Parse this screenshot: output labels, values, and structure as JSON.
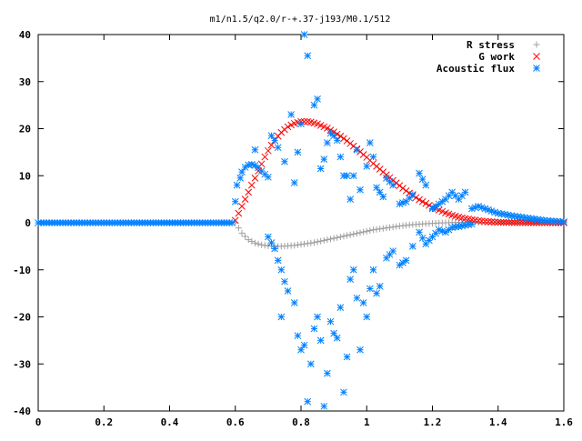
{
  "chart_data": {
    "type": "scatter",
    "title": "m1/n1.5/q2.0/r-+.37-j193/M0.1/512",
    "xlabel": "",
    "ylabel": "",
    "xlim": [
      0,
      1.6
    ],
    "ylim": [
      -40,
      40
    ],
    "x_ticks": [
      "0",
      "0.2",
      "0.4",
      "0.6",
      "0.8",
      "1",
      "1.2",
      "1.4",
      "1.6"
    ],
    "y_ticks": [
      "40",
      "30",
      "20",
      "10",
      "0",
      "-10",
      "-20",
      "-30",
      "-40"
    ],
    "grid": false,
    "legend_position": "top-right",
    "colors": {
      "r_stress": "#a0a0a0",
      "g_work": "#ff0000",
      "acoustic_flux": "#0080ff"
    },
    "series": [
      {
        "name": "R stress",
        "marker": "plus",
        "points": [
          [
            0.6,
            0
          ],
          [
            0.62,
            -2.2
          ],
          [
            0.64,
            -3.6
          ],
          [
            0.66,
            -4.3
          ],
          [
            0.68,
            -4.7
          ],
          [
            0.7,
            -4.9
          ],
          [
            0.72,
            -5.0
          ],
          [
            0.74,
            -5.0
          ],
          [
            0.76,
            -4.9
          ],
          [
            0.78,
            -4.8
          ],
          [
            0.8,
            -4.6
          ],
          [
            0.82,
            -4.4
          ],
          [
            0.84,
            -4.2
          ],
          [
            0.86,
            -3.9
          ],
          [
            0.88,
            -3.6
          ],
          [
            0.9,
            -3.3
          ],
          [
            0.92,
            -3.0
          ],
          [
            0.94,
            -2.7
          ],
          [
            0.96,
            -2.4
          ],
          [
            0.98,
            -2.1
          ],
          [
            1.0,
            -1.8
          ],
          [
            1.02,
            -1.5
          ],
          [
            1.04,
            -1.3
          ],
          [
            1.06,
            -1.1
          ],
          [
            1.08,
            -0.9
          ],
          [
            1.1,
            -0.7
          ],
          [
            1.12,
            -0.55
          ],
          [
            1.14,
            -0.4
          ],
          [
            1.16,
            -0.3
          ],
          [
            1.18,
            -0.2
          ],
          [
            1.2,
            -0.12
          ],
          [
            1.22,
            -0.05
          ],
          [
            1.24,
            0
          ],
          [
            1.26,
            0.05
          ],
          [
            1.28,
            0.08
          ],
          [
            1.3,
            0.1
          ],
          [
            1.32,
            0.1
          ],
          [
            1.34,
            0.1
          ],
          [
            1.36,
            0.08
          ],
          [
            1.38,
            0.06
          ],
          [
            1.4,
            0.05
          ],
          [
            1.45,
            0.03
          ],
          [
            1.5,
            0.02
          ],
          [
            1.55,
            0.01
          ],
          [
            1.6,
            0
          ]
        ]
      },
      {
        "name": "G work",
        "marker": "cross",
        "points": [
          [
            0.6,
            0.5
          ],
          [
            0.61,
            2.0
          ],
          [
            0.62,
            3.5
          ],
          [
            0.63,
            5.0
          ],
          [
            0.64,
            6.5
          ],
          [
            0.65,
            8.0
          ],
          [
            0.66,
            9.5
          ],
          [
            0.67,
            11.0
          ],
          [
            0.68,
            12.5
          ],
          [
            0.69,
            14.0
          ],
          [
            0.7,
            15.3
          ],
          [
            0.71,
            16.5
          ],
          [
            0.72,
            17.5
          ],
          [
            0.73,
            18.4
          ],
          [
            0.74,
            19.2
          ],
          [
            0.75,
            19.8
          ],
          [
            0.76,
            20.4
          ],
          [
            0.77,
            20.8
          ],
          [
            0.78,
            21.1
          ],
          [
            0.79,
            21.3
          ],
          [
            0.8,
            21.5
          ],
          [
            0.81,
            21.5
          ],
          [
            0.82,
            21.5
          ],
          [
            0.83,
            21.4
          ],
          [
            0.84,
            21.2
          ],
          [
            0.85,
            21.0
          ],
          [
            0.86,
            20.7
          ],
          [
            0.88,
            20.1
          ],
          [
            0.9,
            19.3
          ],
          [
            0.92,
            18.4
          ],
          [
            0.94,
            17.4
          ],
          [
            0.96,
            16.3
          ],
          [
            0.98,
            15.1
          ],
          [
            1.0,
            13.9
          ],
          [
            1.02,
            12.6
          ],
          [
            1.04,
            11.4
          ],
          [
            1.06,
            10.2
          ],
          [
            1.08,
            9.0
          ],
          [
            1.1,
            7.9
          ],
          [
            1.12,
            6.8
          ],
          [
            1.14,
            5.8
          ],
          [
            1.16,
            4.9
          ],
          [
            1.18,
            4.1
          ],
          [
            1.2,
            3.3
          ],
          [
            1.22,
            2.7
          ],
          [
            1.24,
            2.1
          ],
          [
            1.26,
            1.6
          ],
          [
            1.28,
            1.2
          ],
          [
            1.3,
            0.9
          ],
          [
            1.32,
            0.65
          ],
          [
            1.34,
            0.45
          ],
          [
            1.36,
            0.3
          ],
          [
            1.38,
            0.2
          ],
          [
            1.4,
            0.12
          ],
          [
            1.45,
            0.05
          ],
          [
            1.5,
            0.02
          ],
          [
            1.55,
            0.01
          ],
          [
            1.6,
            0
          ]
        ]
      },
      {
        "name": "Acoustic flux",
        "marker": "asterisk",
        "points": [
          [
            0.0,
            0
          ],
          [
            0.05,
            0
          ],
          [
            0.1,
            0
          ],
          [
            0.15,
            0
          ],
          [
            0.2,
            0
          ],
          [
            0.25,
            0
          ],
          [
            0.3,
            0
          ],
          [
            0.35,
            0
          ],
          [
            0.4,
            0
          ],
          [
            0.45,
            0
          ],
          [
            0.5,
            0
          ],
          [
            0.55,
            0
          ],
          [
            0.59,
            0
          ],
          [
            0.6,
            4.5
          ],
          [
            0.605,
            8.0
          ],
          [
            0.615,
            9.5
          ],
          [
            0.62,
            10.8
          ],
          [
            0.63,
            11.8
          ],
          [
            0.64,
            12.3
          ],
          [
            0.65,
            12.4
          ],
          [
            0.66,
            12.2
          ],
          [
            0.67,
            11.7
          ],
          [
            0.68,
            11.0
          ],
          [
            0.69,
            10.3
          ],
          [
            0.7,
            9.7
          ],
          [
            0.66,
            15.5
          ],
          [
            0.71,
            18.5
          ],
          [
            0.72,
            17.5
          ],
          [
            0.73,
            16.0
          ],
          [
            0.75,
            13.0
          ],
          [
            0.77,
            23.0
          ],
          [
            0.78,
            8.5
          ],
          [
            0.79,
            15.0
          ],
          [
            0.8,
            21.0
          ],
          [
            0.81,
            40.0
          ],
          [
            0.82,
            35.5
          ],
          [
            0.84,
            25.0
          ],
          [
            0.85,
            26.3
          ],
          [
            0.86,
            11.5
          ],
          [
            0.87,
            13.5
          ],
          [
            0.88,
            17.0
          ],
          [
            0.89,
            19.0
          ],
          [
            0.9,
            18.5
          ],
          [
            0.91,
            17.5
          ],
          [
            0.92,
            14.0
          ],
          [
            0.93,
            10.0
          ],
          [
            0.94,
            10.0
          ],
          [
            0.95,
            5.0
          ],
          [
            0.96,
            10.0
          ],
          [
            0.97,
            15.5
          ],
          [
            0.98,
            7.0
          ],
          [
            1.0,
            12.0
          ],
          [
            1.01,
            17.0
          ],
          [
            1.02,
            14.0
          ],
          [
            1.03,
            7.5
          ],
          [
            1.05,
            5.5
          ],
          [
            1.06,
            9.5
          ],
          [
            1.08,
            8.0
          ],
          [
            1.1,
            4.0
          ],
          [
            1.12,
            4.5
          ],
          [
            1.14,
            6.0
          ],
          [
            1.16,
            10.5
          ],
          [
            1.18,
            8.0
          ],
          [
            1.2,
            3.0
          ],
          [
            1.22,
            4.0
          ],
          [
            1.24,
            5.0
          ],
          [
            1.26,
            6.5
          ],
          [
            1.28,
            5.0
          ],
          [
            1.3,
            6.5
          ],
          [
            1.32,
            3.0
          ],
          [
            1.34,
            3.5
          ],
          [
            1.36,
            3.0
          ],
          [
            1.38,
            2.5
          ],
          [
            1.4,
            2.0
          ],
          [
            1.42,
            1.8
          ],
          [
            1.44,
            1.5
          ],
          [
            1.46,
            1.3
          ],
          [
            1.48,
            1.1
          ],
          [
            1.5,
            0.9
          ],
          [
            1.52,
            0.7
          ],
          [
            1.54,
            0.5
          ],
          [
            1.56,
            0.4
          ],
          [
            1.58,
            0.3
          ],
          [
            1.6,
            0.2
          ],
          [
            0.7,
            -3.0
          ],
          [
            0.72,
            -5.5
          ],
          [
            0.73,
            -8.0
          ],
          [
            0.74,
            -10.0
          ],
          [
            0.75,
            -12.5
          ],
          [
            0.76,
            -14.5
          ],
          [
            0.74,
            -20.0
          ],
          [
            0.78,
            -17.0
          ],
          [
            0.79,
            -24.0
          ],
          [
            0.8,
            -27.0
          ],
          [
            0.81,
            -26.0
          ],
          [
            0.82,
            -38.0
          ],
          [
            0.83,
            -30.0
          ],
          [
            0.84,
            -22.5
          ],
          [
            0.85,
            -20.0
          ],
          [
            0.86,
            -25.0
          ],
          [
            0.87,
            -39.0
          ],
          [
            0.88,
            -32.0
          ],
          [
            0.89,
            -21.0
          ],
          [
            0.9,
            -23.5
          ],
          [
            0.91,
            -24.5
          ],
          [
            0.92,
            -18.0
          ],
          [
            0.93,
            -36.0
          ],
          [
            0.94,
            -28.5
          ],
          [
            0.95,
            -12.0
          ],
          [
            0.96,
            -10.0
          ],
          [
            0.97,
            -16.0
          ],
          [
            0.98,
            -27.0
          ],
          [
            0.99,
            -17.0
          ],
          [
            1.0,
            -20.0
          ],
          [
            1.01,
            -14.0
          ],
          [
            1.02,
            -10.0
          ],
          [
            1.03,
            -15.0
          ],
          [
            1.04,
            -13.5
          ],
          [
            1.06,
            -7.5
          ],
          [
            1.08,
            -6.0
          ],
          [
            1.1,
            -9.0
          ],
          [
            1.12,
            -8.0
          ],
          [
            1.14,
            -5.0
          ],
          [
            1.16,
            -2.0
          ],
          [
            1.18,
            -4.5
          ],
          [
            1.2,
            -3.0
          ],
          [
            1.22,
            -1.5
          ],
          [
            1.24,
            -2.0
          ],
          [
            1.26,
            -1.0
          ],
          [
            1.28,
            -0.8
          ],
          [
            1.3,
            -0.5
          ],
          [
            1.32,
            -0.3
          ]
        ]
      }
    ]
  }
}
